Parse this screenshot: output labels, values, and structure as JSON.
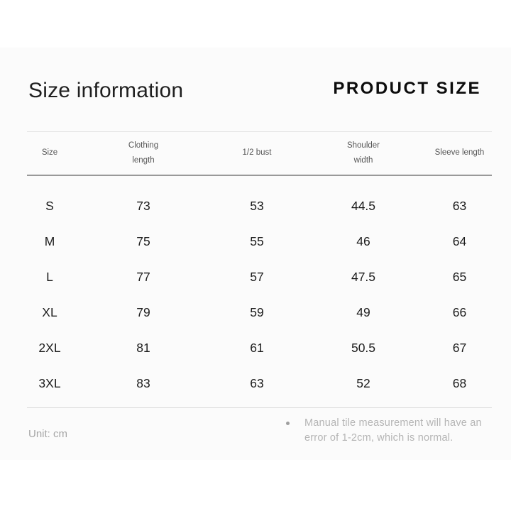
{
  "page": {
    "title": "Size information",
    "brand_heading": "PRODUCT SIZE",
    "unit_label": "Unit: cm",
    "note": "Manual tile measurement will have an error of 1-2cm, which is normal."
  },
  "table": {
    "columns": [
      "Size",
      "Clothing length",
      "1/2 bust",
      "Shoulder width",
      "Sleeve length"
    ],
    "rows": [
      {
        "size": "S",
        "clothing_length": "73",
        "half_bust": "53",
        "shoulder_width": "44.5",
        "sleeve_length": "63"
      },
      {
        "size": "M",
        "clothing_length": "75",
        "half_bust": "55",
        "shoulder_width": "46",
        "sleeve_length": "64"
      },
      {
        "size": "L",
        "clothing_length": "77",
        "half_bust": "57",
        "shoulder_width": "47.5",
        "sleeve_length": "65"
      },
      {
        "size": "XL",
        "clothing_length": "79",
        "half_bust": "59",
        "shoulder_width": "49",
        "sleeve_length": "66"
      },
      {
        "size": "2XL",
        "clothing_length": "81",
        "half_bust": "61",
        "shoulder_width": "50.5",
        "sleeve_length": "67"
      },
      {
        "size": "3XL",
        "clothing_length": "83",
        "half_bust": "63",
        "shoulder_width": "52",
        "sleeve_length": "68"
      }
    ]
  },
  "chart_data": {
    "type": "table",
    "title": "Size information",
    "subtitle": "PRODUCT SIZE",
    "unit": "cm",
    "columns": [
      "Size",
      "Clothing length",
      "1/2 bust",
      "Shoulder width",
      "Sleeve length"
    ],
    "rows": [
      [
        "S",
        73,
        53,
        44.5,
        63
      ],
      [
        "M",
        75,
        55,
        46,
        64
      ],
      [
        "L",
        77,
        57,
        47.5,
        65
      ],
      [
        "XL",
        79,
        59,
        49,
        66
      ],
      [
        "2XL",
        81,
        61,
        50.5,
        67
      ],
      [
        "3XL",
        83,
        63,
        52,
        68
      ]
    ],
    "annotations": [
      "Unit: cm",
      "Manual tile measurement will have an error of 1-2cm, which is normal."
    ]
  },
  "colors": {
    "card_background": "#fbfbfb",
    "heading_text": "#0c0c0c",
    "body_text": "#1c1c1c",
    "header_text": "#565656",
    "muted_text": "#b5b5b5",
    "rule_strong": "#999999",
    "rule_light": "#e4e4e4"
  }
}
